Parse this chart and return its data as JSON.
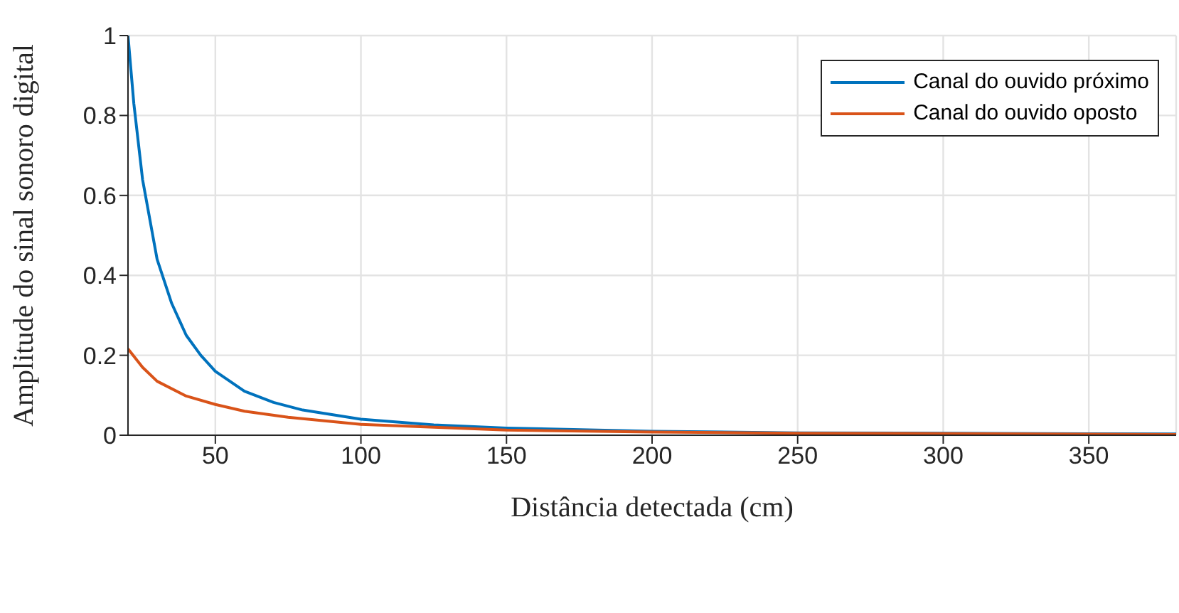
{
  "chart_data": {
    "type": "line",
    "xlabel": "Distância detectada (cm)",
    "ylabel": "Amplitude do sinal sonoro digital",
    "xlim": [
      20,
      380
    ],
    "xticks": [
      50,
      100,
      150,
      200,
      250,
      300,
      350
    ],
    "ylim": [
      0,
      1
    ],
    "yticks": [
      0,
      0.2,
      0.4,
      0.6,
      0.8,
      1
    ],
    "grid": true,
    "legend": "top right",
    "marker": "none",
    "line_style": "solid",
    "series": [
      {
        "name": "Canal do ouvido próximo",
        "color": "#0072bd",
        "x": [
          20,
          22,
          25,
          30,
          35,
          40,
          45,
          50,
          60,
          70,
          80,
          100,
          125,
          150,
          200,
          250,
          380
        ],
        "values": [
          1,
          0.83,
          0.64,
          0.44,
          0.33,
          0.25,
          0.2,
          0.16,
          0.11,
          0.082,
          0.063,
          0.04,
          0.026,
          0.018,
          0.01,
          0.006,
          0.003
        ]
      },
      {
        "name": "Canal do ouvido oposto",
        "color": "#d95319",
        "x": [
          20,
          25,
          30,
          40,
          50,
          60,
          75,
          100,
          150,
          200,
          250,
          300,
          380
        ],
        "values": [
          0.216,
          0.17,
          0.135,
          0.098,
          0.077,
          0.06,
          0.045,
          0.027,
          0.013,
          0.008,
          0.005,
          0.004,
          0.002
        ]
      }
    ]
  }
}
